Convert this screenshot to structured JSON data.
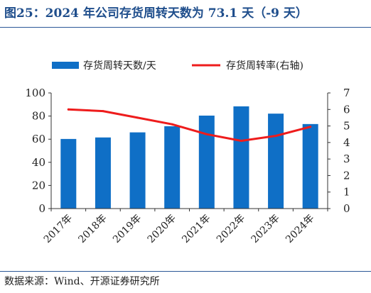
{
  "header": {
    "title": "图25：2024 年公司存货周转天数为 73.1 天（-9 天）"
  },
  "footer": {
    "source": "数据来源：Wind、开源证券研究所"
  },
  "chart_data": {
    "type": "bar",
    "categories": [
      "2017年",
      "2018年",
      "2019年",
      "2020年",
      "2021年",
      "2022年",
      "2023年",
      "2024年"
    ],
    "series": [
      {
        "name": "存货周转天数/天",
        "kind": "bar",
        "axis": "left",
        "color": "#0f6fc6",
        "values": [
          60.2,
          61.5,
          65.9,
          71.2,
          80.4,
          88.4,
          82.1,
          73.1
        ]
      },
      {
        "name": "存货周转率(右轴)",
        "kind": "line",
        "axis": "right",
        "color": "#ee1c1c",
        "values": [
          6.0,
          5.9,
          5.5,
          5.1,
          4.5,
          4.1,
          4.4,
          4.95
        ]
      }
    ],
    "ylim_left": [
      0,
      100
    ],
    "yticks_left": [
      "0",
      "20",
      "40",
      "60",
      "80",
      "100"
    ],
    "ylim_right": [
      0,
      7
    ],
    "yticks_right": [
      "0",
      "1",
      "2",
      "3",
      "4",
      "5",
      "6",
      "7"
    ],
    "legend_position": "top",
    "grid": false
  }
}
